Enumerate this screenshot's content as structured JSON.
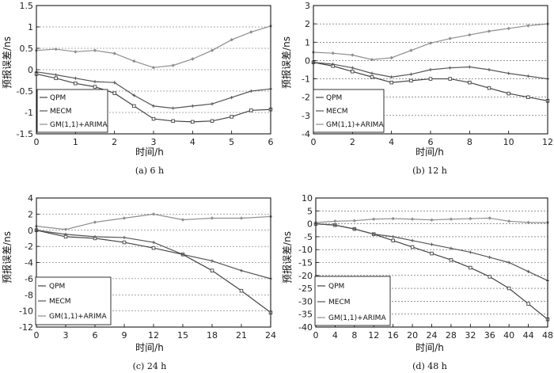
{
  "colors": {
    "qpm": "#444444",
    "mecm": "#555555",
    "gm": "#8e8e8e"
  },
  "chart_data": [
    {
      "type": "line",
      "caption": "(a) 6 h",
      "xlabel": "时间/h",
      "ylabel": "预报误差/ns",
      "xlim": [
        0,
        6
      ],
      "ylim": [
        -1.5,
        1.5
      ],
      "xticks": [
        0,
        1,
        2,
        3,
        4,
        5,
        6
      ],
      "yticks": [
        -1.5,
        -1,
        -0.5,
        0,
        0.5,
        1,
        1.5
      ],
      "ytick_labels": [
        "-1.5",
        "-1",
        "-0.5",
        "0",
        "0.5",
        "1",
        "1.5"
      ],
      "legend": [
        "QPM",
        "MECM",
        "GM(1,1)+ARIMA"
      ],
      "series": [
        {
          "name": "QPM",
          "x": [
            0,
            0.5,
            1,
            1.5,
            2,
            2.5,
            3,
            3.5,
            4,
            4.5,
            5,
            5.5,
            6
          ],
          "values": [
            -0.1,
            -0.2,
            -0.32,
            -0.4,
            -0.55,
            -0.85,
            -1.15,
            -1.2,
            -1.22,
            -1.2,
            -1.1,
            -0.95,
            -0.93
          ]
        },
        {
          "name": "MECM",
          "x": [
            0,
            0.5,
            1,
            1.5,
            2,
            2.5,
            3,
            3.5,
            4,
            4.5,
            5,
            5.5,
            6
          ],
          "values": [
            -0.05,
            -0.12,
            -0.2,
            -0.28,
            -0.3,
            -0.6,
            -0.85,
            -0.9,
            -0.85,
            -0.8,
            -0.65,
            -0.5,
            -0.45
          ]
        },
        {
          "name": "GM(1,1)+ARIMA",
          "x": [
            0,
            0.5,
            1,
            1.5,
            2,
            2.5,
            3,
            3.5,
            4,
            4.5,
            5,
            5.5,
            6
          ],
          "values": [
            0.45,
            0.48,
            0.42,
            0.45,
            0.38,
            0.2,
            0.05,
            0.1,
            0.25,
            0.45,
            0.7,
            0.88,
            1.02
          ]
        }
      ]
    },
    {
      "type": "line",
      "caption": "(b) 12 h",
      "xlabel": "时间/h",
      "ylabel": "预报误差/ns",
      "xlim": [
        0,
        12
      ],
      "ylim": [
        -4,
        3
      ],
      "xticks": [
        0,
        2,
        4,
        6,
        8,
        10,
        12
      ],
      "yticks": [
        -4,
        -3,
        -2,
        -1,
        0,
        1,
        2,
        3
      ],
      "ytick_labels": [
        "-4",
        "-3",
        "-2",
        "-1",
        "0",
        "1",
        "2",
        "3"
      ],
      "legend": [
        "QPM",
        "MECM",
        "GM(1,1)+ARIMA"
      ],
      "series": [
        {
          "name": "QPM",
          "x": [
            0,
            1,
            2,
            3,
            4,
            5,
            6,
            7,
            8,
            9,
            10,
            11,
            12
          ],
          "values": [
            -0.1,
            -0.3,
            -0.6,
            -0.9,
            -1.2,
            -1.1,
            -1.0,
            -1.0,
            -1.2,
            -1.5,
            -1.8,
            -2.0,
            -2.2
          ]
        },
        {
          "name": "MECM",
          "x": [
            0,
            1,
            2,
            3,
            4,
            5,
            6,
            7,
            8,
            9,
            10,
            11,
            12
          ],
          "values": [
            -0.1,
            -0.2,
            -0.4,
            -0.7,
            -0.9,
            -0.75,
            -0.5,
            -0.4,
            -0.35,
            -0.5,
            -0.7,
            -0.85,
            -1.0
          ]
        },
        {
          "name": "GM(1,1)+ARIMA",
          "x": [
            0,
            1,
            2,
            3,
            4,
            5,
            6,
            7,
            8,
            9,
            10,
            11,
            12
          ],
          "values": [
            0.45,
            0.4,
            0.3,
            0.05,
            0.15,
            0.55,
            0.95,
            1.2,
            1.4,
            1.6,
            1.75,
            1.9,
            2.0
          ]
        }
      ]
    },
    {
      "type": "line",
      "caption": "(c) 24 h",
      "xlabel": "时间/h",
      "ylabel": "预报误差/ns",
      "xlim": [
        0,
        24
      ],
      "ylim": [
        -12,
        4
      ],
      "xticks": [
        0,
        3,
        6,
        9,
        12,
        15,
        18,
        21,
        24
      ],
      "yticks": [
        -12,
        -10,
        -8,
        -6,
        -4,
        -2,
        0,
        2,
        4
      ],
      "ytick_labels": [
        "-12",
        "-10",
        "-8",
        "-6",
        "-4",
        "-2",
        "0",
        "2",
        "4"
      ],
      "legend": [
        "QPM",
        "MECM",
        "GM(1,1)+ARIMA"
      ],
      "series": [
        {
          "name": "QPM",
          "x": [
            0,
            3,
            6,
            9,
            12,
            15,
            18,
            21,
            24
          ],
          "values": [
            0,
            -0.8,
            -1.0,
            -1.5,
            -2.2,
            -3.0,
            -5.0,
            -7.5,
            -10.2
          ]
        },
        {
          "name": "MECM",
          "x": [
            0,
            3,
            6,
            9,
            12,
            15,
            18,
            21,
            24
          ],
          "values": [
            0,
            -0.5,
            -0.8,
            -0.9,
            -1.5,
            -3.0,
            -3.8,
            -5.0,
            -6.0
          ]
        },
        {
          "name": "GM(1,1)+ARIMA",
          "x": [
            0,
            3,
            6,
            9,
            12,
            15,
            18,
            21,
            24
          ],
          "values": [
            0.5,
            0.1,
            1.0,
            1.5,
            2.0,
            1.3,
            1.5,
            1.5,
            1.7
          ]
        }
      ]
    },
    {
      "type": "line",
      "caption": "(d) 48 h",
      "xlabel": "时间/h",
      "ylabel": "预报误差/ns",
      "xlim": [
        0,
        48
      ],
      "ylim": [
        -40,
        10
      ],
      "xticks": [
        0,
        4,
        8,
        12,
        16,
        20,
        24,
        28,
        32,
        36,
        40,
        44,
        48
      ],
      "yticks": [
        -40,
        -35,
        -30,
        -25,
        -20,
        -15,
        -10,
        -5,
        0,
        5,
        10
      ],
      "ytick_labels": [
        "-40",
        "-35",
        "-30",
        "-25",
        "-20",
        "-15",
        "-10",
        "-5",
        "0",
        "5",
        "10"
      ],
      "legend": [
        "QPM",
        "MECM",
        "GM(1,1)+ARIMA"
      ],
      "series": [
        {
          "name": "QPM",
          "x": [
            0,
            4,
            8,
            12,
            16,
            20,
            24,
            28,
            32,
            36,
            40,
            44,
            48
          ],
          "values": [
            0,
            -0.5,
            -2,
            -4,
            -6.5,
            -9,
            -11.5,
            -14,
            -17,
            -20.5,
            -25,
            -31,
            -37
          ]
        },
        {
          "name": "MECM",
          "x": [
            0,
            4,
            8,
            12,
            16,
            20,
            24,
            28,
            32,
            36,
            40,
            44,
            48
          ],
          "values": [
            0,
            -0.5,
            -2,
            -4,
            -5,
            -6.5,
            -8,
            -9.5,
            -11,
            -13,
            -15,
            -18.5,
            -22
          ]
        },
        {
          "name": "GM(1,1)+ARIMA",
          "x": [
            0,
            4,
            8,
            12,
            16,
            20,
            24,
            28,
            32,
            36,
            40,
            44,
            48
          ],
          "values": [
            0.5,
            1,
            1.2,
            1.8,
            2,
            1.8,
            1.5,
            1.8,
            2,
            2.2,
            1,
            0.5,
            0.5
          ]
        }
      ]
    }
  ]
}
